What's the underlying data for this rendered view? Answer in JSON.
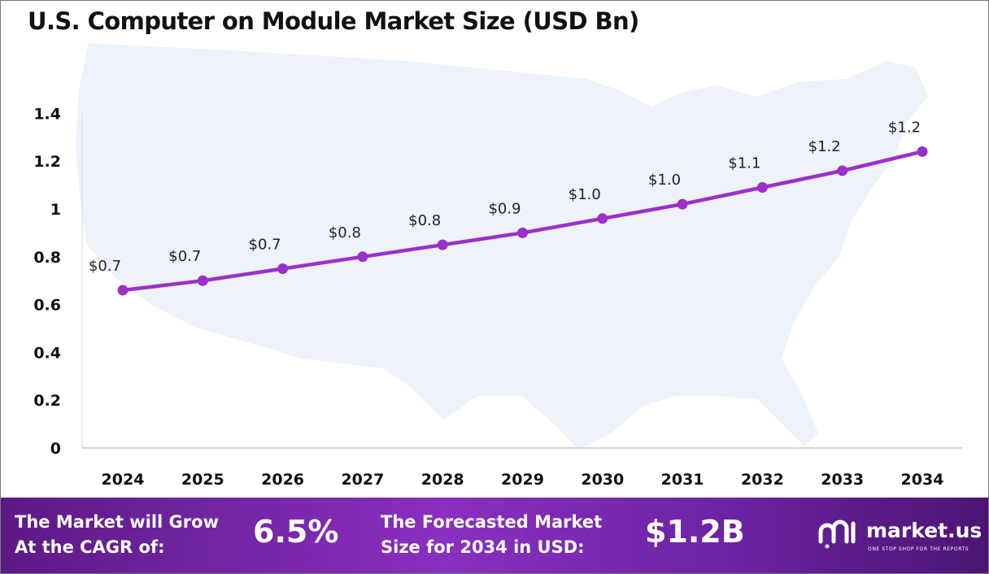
{
  "chart_data": {
    "type": "line",
    "title": "U.S. Computer on Module Market Size (USD Bn)",
    "categories": [
      "2024",
      "2025",
      "2026",
      "2027",
      "2028",
      "2029",
      "2030",
      "2031",
      "2032",
      "2033",
      "2034"
    ],
    "series": [
      {
        "values": [
          0.66,
          0.7,
          0.75,
          0.8,
          0.85,
          0.9,
          0.96,
          1.02,
          1.09,
          1.16,
          1.24
        ],
        "data_labels": [
          "$0.7",
          "$0.7",
          "$0.7",
          "$0.8",
          "$0.8",
          "$0.9",
          "$1.0",
          "$1.0",
          "$1.1",
          "$1.2",
          "$1.2"
        ],
        "color": "#9b30c8"
      }
    ],
    "y_ticks": [
      "0",
      "0.2",
      "0.4",
      "0.6",
      "0.8",
      "1",
      "1.2",
      "1.4"
    ],
    "ylim": [
      0,
      1.4
    ],
    "grid": false,
    "background_shape": "us-map"
  },
  "footer": {
    "cagr_label_line1": "The Market will Grow",
    "cagr_label_line2": "At the CAGR of:",
    "cagr_value": "6.5%",
    "forecast_label_line1": "The Forecasted Market",
    "forecast_label_line2": "Size for 2034 in USD:",
    "forecast_value": "$1.2B",
    "brand_name": "market.us",
    "brand_tagline": "ONE STOP SHOP FOR THE REPORTS",
    "brand_icon": "market-us-logo-icon"
  },
  "colors": {
    "line": "#9b30c8",
    "map": "#edf2fb",
    "footer_start": "#5c1a86",
    "footer_end": "#4c1472"
  }
}
